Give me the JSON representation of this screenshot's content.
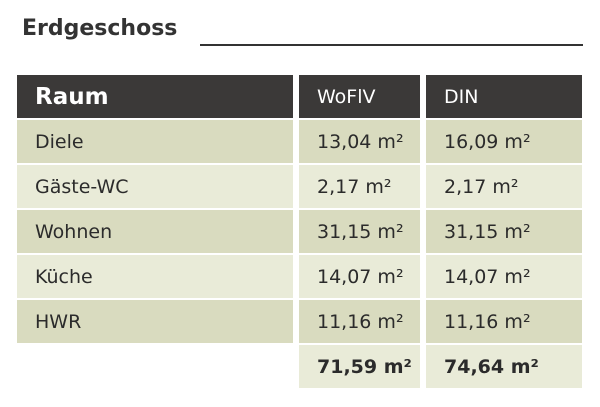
{
  "title": "Erdgeschoss",
  "table": {
    "header": [
      "Raum",
      "WoFlV",
      "DIN"
    ],
    "rows": [
      [
        "Diele",
        "13,04 m²",
        "16,09 m²"
      ],
      [
        "Gäste-WC",
        "2,17 m²",
        "2,17 m²"
      ],
      [
        "Wohnen",
        "31,15 m²",
        "31,15 m²"
      ],
      [
        "Küche",
        "14,07 m²",
        "14,07 m²"
      ],
      [
        "HWR",
        "11,16 m²",
        "11,16 m²"
      ]
    ],
    "total": [
      "71,59 m²",
      "74,64 m²"
    ]
  }
}
